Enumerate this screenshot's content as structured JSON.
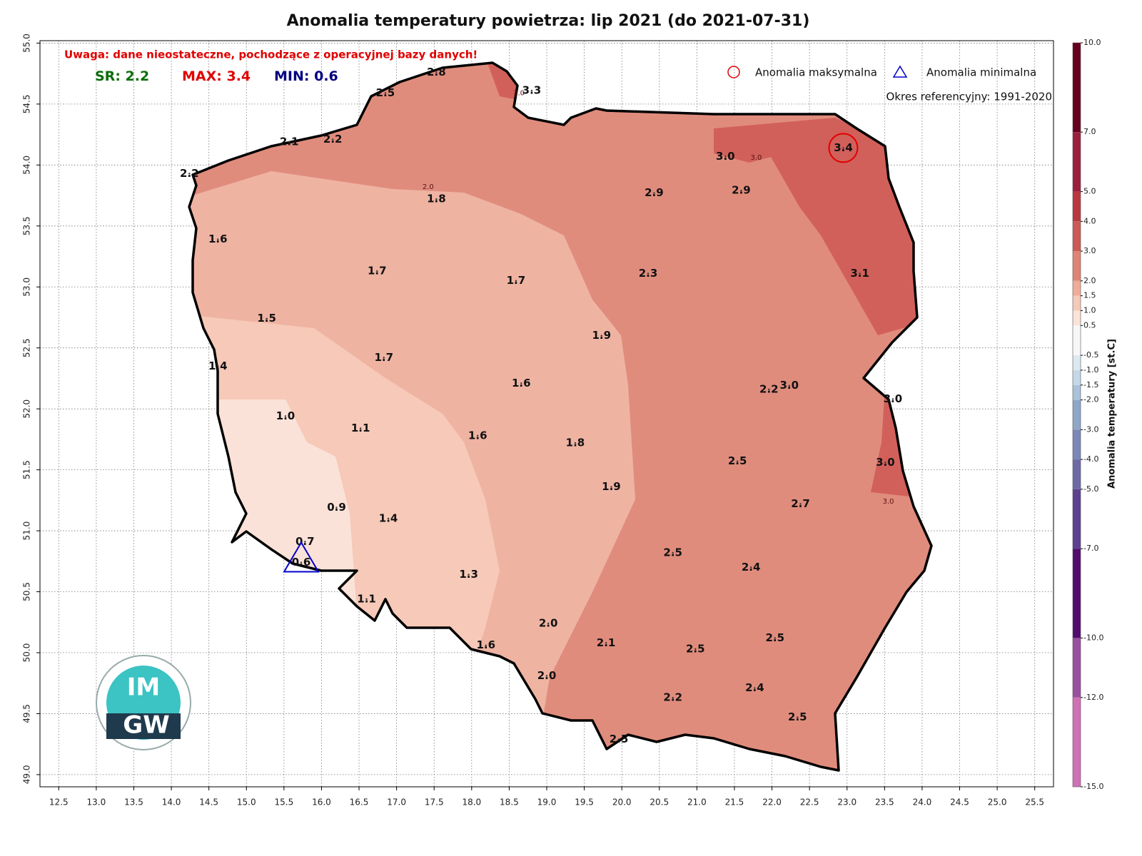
{
  "chart_data": {
    "type": "station-map",
    "title": "Anomalia temperatury powietrza: lip 2021 (do 2021-07-31)",
    "warning": "Uwaga: dane nieostateczne, pochodzące z operacyjnej bazy danych!",
    "stats": {
      "sr_label": "SR:",
      "sr": 2.2,
      "max_label": "MAX:",
      "max": 3.4,
      "min_label": "MIN:",
      "min": 0.6
    },
    "legend": {
      "max_marker": "Anomalia maksymalna",
      "min_marker": "Anomalia minimalna",
      "reference": "Okres referencyjny: 1991-2020"
    },
    "logo": {
      "top": "IM",
      "bottom": "GW"
    },
    "xlim": [
      12.25,
      25.75
    ],
    "ylim": [
      48.9,
      55.02
    ],
    "xticks": [
      12.5,
      {
        "value": 13,
        "label": "13.0"
      },
      13.5,
      {
        "value": 14,
        "label": "14.0"
      },
      14.5,
      {
        "value": 15,
        "label": "15.0"
      },
      15.5,
      {
        "value": 16,
        "label": "16.0"
      },
      16.5,
      {
        "value": 17,
        "label": "17.0"
      },
      17.5,
      {
        "value": 18,
        "label": "18.0"
      },
      18.5,
      {
        "value": 19,
        "label": "19.0"
      },
      19.5,
      {
        "value": 20,
        "label": "20.0"
      },
      20.5,
      {
        "value": 21,
        "label": "21.0"
      },
      21.5,
      {
        "value": 22,
        "label": "22.0"
      },
      22.5,
      {
        "value": 23,
        "label": "23.0"
      },
      23.5,
      {
        "value": 24,
        "label": "24.0"
      },
      24.5,
      {
        "value": 25,
        "label": "25.0"
      },
      25.5
    ],
    "yticks": [
      {
        "value": 49,
        "label": "49.0"
      },
      49.5,
      {
        "value": 50,
        "label": "50.0"
      },
      50.5,
      {
        "value": 51,
        "label": "51.0"
      },
      51.5,
      {
        "value": 52,
        "label": "52.0"
      },
      52.5,
      {
        "value": 53,
        "label": "53.0"
      },
      53.5,
      {
        "value": 54,
        "label": "54.0"
      },
      54.5,
      {
        "value": 55,
        "label": "55.0"
      }
    ],
    "grid": true,
    "stations": {
      "lon": [
        17.53,
        18.8,
        16.85,
        15.57,
        16.15,
        14.24,
        17.53,
        14.62,
        16.74,
        18.59,
        15.27,
        14.62,
        16.83,
        18.66,
        19.73,
        20.43,
        21.59,
        21.38,
        22.95,
        20.35,
        23.17,
        21.96,
        22.23,
        23.61,
        23.51,
        15.52,
        16.52,
        18.08,
        19.38,
        16.2,
        16.89,
        19.86,
        21.54,
        22.38,
        15.78,
        15.73,
        17.96,
        16.6,
        20.68,
        21.72,
        19.02,
        18.19,
        19.79,
        20.98,
        22.04,
        19.0,
        21.77,
        20.68,
        22.34,
        19.96
      ],
      "lat": [
        54.76,
        54.61,
        54.59,
        54.19,
        54.21,
        53.93,
        53.72,
        53.39,
        53.13,
        53.05,
        52.74,
        52.35,
        52.42,
        52.21,
        52.6,
        53.77,
        53.79,
        54.07,
        54.14,
        53.11,
        53.11,
        52.16,
        52.19,
        52.08,
        51.56,
        51.94,
        51.84,
        51.78,
        51.72,
        51.19,
        51.1,
        51.36,
        51.57,
        51.22,
        50.91,
        50.74,
        50.64,
        50.44,
        50.82,
        50.7,
        50.24,
        50.06,
        50.08,
        50.03,
        50.12,
        49.81,
        49.71,
        49.63,
        49.47,
        49.29
      ],
      "values": [
        2.8,
        3.3,
        2.5,
        2.1,
        2.2,
        2.2,
        1.8,
        1.6,
        1.7,
        1.7,
        1.5,
        1.4,
        1.7,
        1.6,
        1.9,
        2.9,
        2.9,
        3.0,
        3.4,
        2.3,
        3.1,
        2.2,
        3.0,
        3.0,
        3.0,
        1.0,
        1.1,
        1.6,
        1.8,
        0.9,
        1.4,
        1.9,
        2.5,
        2.7,
        0.7,
        0.6,
        1.3,
        1.1,
        2.5,
        2.4,
        2.0,
        1.6,
        2.1,
        2.5,
        2.5,
        2.0,
        2.4,
        2.2,
        2.5,
        2.5
      ],
      "value_labels": [
        "2.8",
        "3.3",
        "2.5",
        "2.1",
        "2.2",
        "2.2",
        "1.8",
        "1.6",
        "1.7",
        "1.7",
        "1.5",
        "1.4",
        "1.7",
        "1.6",
        "1.9",
        "2.9",
        "2.9",
        "3.0",
        "3.4",
        "2.3",
        "3.1",
        "2.2",
        "3.0",
        "3.0",
        "3.0",
        "1.0",
        "1.1",
        "1.6",
        "1.8",
        "0.9",
        "1.4",
        "1.9",
        "2.5",
        "2.7",
        "0.7",
        "0.6",
        "1.3",
        "1.1",
        "2.5",
        "2.4",
        "2.0",
        "1.6",
        "2.1",
        "2.5",
        "2.5",
        "2.0",
        "2.4",
        "2.2",
        "2.5",
        "2.5"
      ]
    },
    "contour_labels": [
      {
        "label": "3.0",
        "lon": 18.63,
        "lat": 54.59
      },
      {
        "label": "3.0",
        "lon": 21.79,
        "lat": 54.06
      },
      {
        "label": "2.0",
        "lon": 17.42,
        "lat": 53.82
      },
      {
        "label": "3.0",
        "lon": 23.55,
        "lat": 51.24
      }
    ],
    "colorbar": {
      "label": "Anomalia temperatury [st.C]",
      "lim": [
        -15,
        10
      ],
      "levels": [
        {
          "value": 10,
          "label": "10.0"
        },
        {
          "value": 7,
          "label": "7.0"
        },
        {
          "value": 5,
          "label": "5.0"
        },
        {
          "value": 4,
          "label": "4.0"
        },
        {
          "value": 3,
          "label": "3.0"
        },
        {
          "value": 2,
          "label": "2.0"
        },
        1.5,
        {
          "value": 1,
          "label": "1.0"
        },
        0.5,
        -0.5,
        {
          "value": -1,
          "label": "-1.0"
        },
        -1.5,
        {
          "value": -2,
          "label": "-2.0"
        },
        {
          "value": -3,
          "label": "-3.0"
        },
        {
          "value": -4,
          "label": "-4.0"
        },
        {
          "value": -5,
          "label": "-5.0"
        },
        {
          "value": -7,
          "label": "-7.0"
        },
        {
          "value": -10,
          "label": "-10.0"
        },
        {
          "value": -12,
          "label": "-12.0"
        },
        {
          "value": -15,
          "label": "-15.0"
        }
      ],
      "colors": [
        "#67001f",
        "#9b1f3d",
        "#b9383f",
        "#cc5a55",
        "#de8474",
        "#efac98",
        "#f6c9b8",
        "#fbe3d8",
        "#f7f7f7",
        "#dde9f1",
        "#c4d8e7",
        "#a9c3da",
        "#8ea7c8",
        "#7b87b8",
        "#6d69a6",
        "#5d4190",
        "#520c6e",
        "#9a4f9f",
        "#d170b6"
      ]
    }
  }
}
